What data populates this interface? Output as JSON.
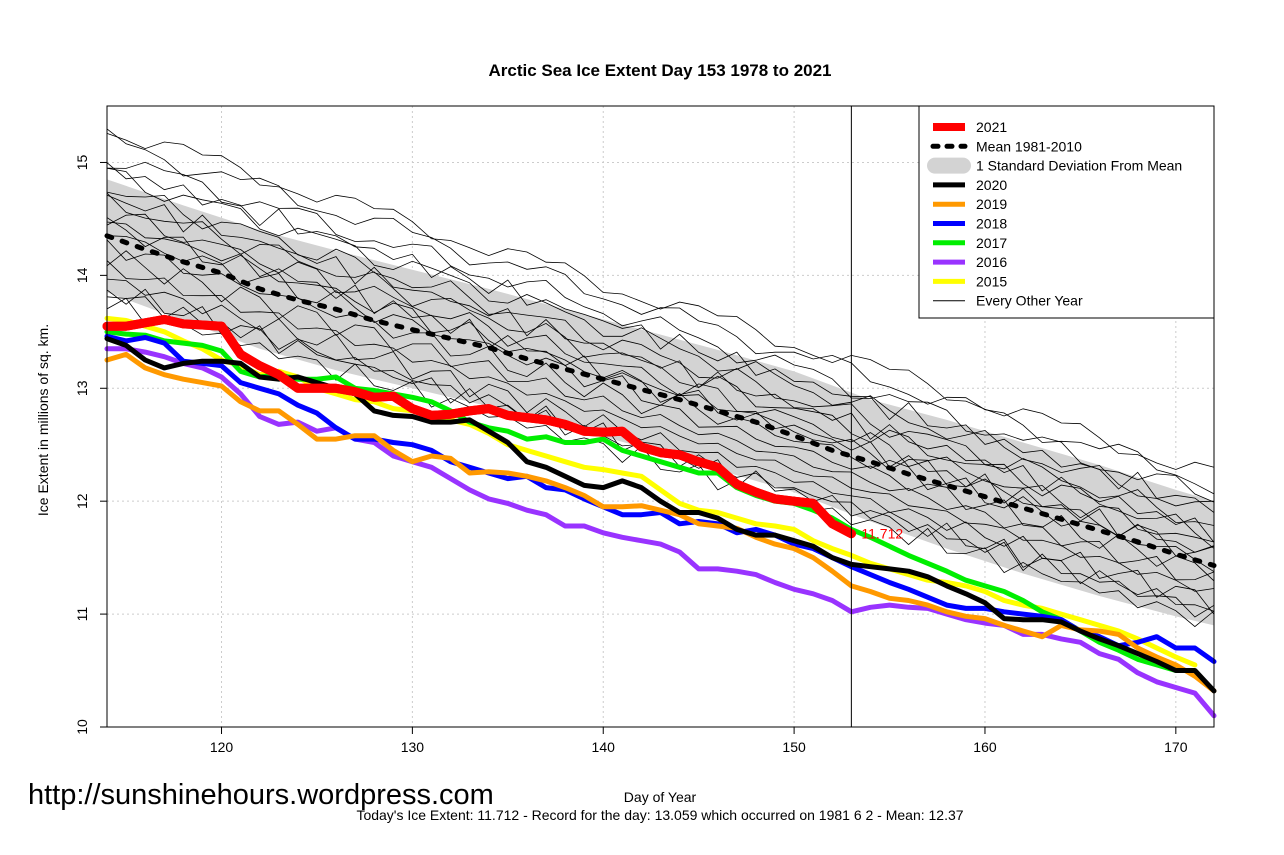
{
  "chart_data": {
    "type": "line",
    "title": "Arctic Sea Ice Extent Day 153 1978 to 2021",
    "xlabel": "Day of Year",
    "ylabel": "Ice Extent in millions of sq. km.",
    "xlim": [
      114,
      172
    ],
    "ylim": [
      10,
      15.5
    ],
    "x_ticks": [
      120,
      130,
      140,
      150,
      160,
      170
    ],
    "y_ticks": [
      10,
      11,
      12,
      13,
      14,
      15
    ],
    "grid": true,
    "legend_position": "top-right",
    "current_day": 153,
    "current_value_label": "11.712",
    "mean": {
      "name": "Mean 1981-2010",
      "x": [
        114,
        116,
        118,
        120,
        122,
        124,
        126,
        128,
        130,
        132,
        134,
        136,
        138,
        140,
        142,
        144,
        146,
        148,
        150,
        152,
        154,
        156,
        158,
        160,
        162,
        164,
        166,
        168,
        170,
        172
      ],
      "y": [
        14.35,
        14.23,
        14.12,
        14.02,
        13.88,
        13.78,
        13.7,
        13.6,
        13.52,
        13.44,
        13.36,
        13.26,
        13.17,
        13.08,
        12.99,
        12.9,
        12.8,
        12.7,
        12.58,
        12.45,
        12.35,
        12.24,
        12.14,
        12.04,
        11.94,
        11.84,
        11.74,
        11.64,
        11.53,
        11.43
      ]
    },
    "std_band": {
      "name": "1 Standard Deviation From Mean",
      "x": [
        114,
        118,
        122,
        126,
        130,
        134,
        138,
        142,
        146,
        150,
        154,
        158,
        162,
        166,
        170,
        172
      ],
      "upper": [
        14.85,
        14.62,
        14.4,
        14.22,
        14.05,
        13.88,
        13.7,
        13.52,
        13.34,
        13.15,
        12.9,
        12.72,
        12.52,
        12.32,
        12.1,
        12.0
      ],
      "lower": [
        13.85,
        13.6,
        13.35,
        13.16,
        13.0,
        12.84,
        12.66,
        12.48,
        12.28,
        12.08,
        11.82,
        11.58,
        11.36,
        11.16,
        10.98,
        10.9
      ]
    },
    "series": [
      {
        "name": "2021",
        "color": "#ff0000",
        "width": 9,
        "x": [
          114,
          115,
          116,
          117,
          118,
          119,
          120,
          121,
          122,
          123,
          124,
          125,
          126,
          127,
          128,
          129,
          130,
          131,
          132,
          133,
          134,
          135,
          136,
          137,
          138,
          139,
          140,
          141,
          142,
          143,
          144,
          145,
          146,
          147,
          148,
          149,
          150,
          151,
          152,
          153
        ],
        "y": [
          13.55,
          13.55,
          13.58,
          13.61,
          13.57,
          13.56,
          13.55,
          13.3,
          13.2,
          13.12,
          13.0,
          13.0,
          13.0,
          12.97,
          12.92,
          12.93,
          12.82,
          12.76,
          12.77,
          12.8,
          12.82,
          12.76,
          12.74,
          12.72,
          12.68,
          12.62,
          12.61,
          12.62,
          12.48,
          12.43,
          12.41,
          12.35,
          12.3,
          12.15,
          12.08,
          12.02,
          12.0,
          11.98,
          11.8,
          11.712
        ]
      },
      {
        "name": "2020",
        "color": "#000000",
        "width": 5,
        "x": [
          114,
          115,
          116,
          117,
          118,
          119,
          120,
          121,
          122,
          123,
          124,
          125,
          126,
          127,
          128,
          129,
          130,
          131,
          132,
          133,
          134,
          135,
          136,
          137,
          138,
          139,
          140,
          141,
          142,
          143,
          144,
          145,
          146,
          147,
          148,
          149,
          150,
          151,
          152,
          153,
          154,
          155,
          156,
          157,
          158,
          159,
          160,
          161,
          162,
          163,
          164,
          165,
          166,
          167,
          168,
          169,
          170,
          171,
          172
        ],
        "y": [
          13.44,
          13.38,
          13.25,
          13.18,
          13.22,
          13.24,
          13.24,
          13.22,
          13.1,
          13.08,
          13.1,
          13.05,
          13.0,
          12.95,
          12.8,
          12.76,
          12.75,
          12.7,
          12.7,
          12.72,
          12.62,
          12.52,
          12.35,
          12.3,
          12.22,
          12.14,
          12.12,
          12.18,
          12.12,
          12.0,
          11.9,
          11.9,
          11.85,
          11.75,
          11.7,
          11.7,
          11.65,
          11.6,
          11.5,
          11.44,
          11.42,
          11.4,
          11.38,
          11.33,
          11.25,
          11.18,
          11.1,
          10.96,
          10.95,
          10.95,
          10.93,
          10.85,
          10.78,
          10.72,
          10.65,
          10.58,
          10.5,
          10.5,
          10.32
        ]
      },
      {
        "name": "2019",
        "color": "#ff9900",
        "width": 5,
        "x": [
          114,
          115,
          116,
          117,
          118,
          119,
          120,
          121,
          122,
          123,
          124,
          125,
          126,
          127,
          128,
          129,
          130,
          131,
          132,
          133,
          134,
          135,
          136,
          137,
          138,
          139,
          140,
          141,
          142,
          143,
          144,
          145,
          146,
          147,
          148,
          149,
          150,
          151,
          152,
          153,
          154,
          155,
          156,
          157,
          158,
          159,
          160,
          161,
          162,
          163,
          164,
          165,
          166,
          167,
          168,
          169,
          170,
          171,
          172
        ],
        "y": [
          13.25,
          13.3,
          13.18,
          13.12,
          13.08,
          13.05,
          13.02,
          12.88,
          12.8,
          12.8,
          12.68,
          12.55,
          12.55,
          12.58,
          12.58,
          12.45,
          12.35,
          12.4,
          12.38,
          12.25,
          12.26,
          12.25,
          12.22,
          12.18,
          12.12,
          12.05,
          11.95,
          11.95,
          11.96,
          11.92,
          11.88,
          11.8,
          11.78,
          11.76,
          11.68,
          11.62,
          11.58,
          11.5,
          11.38,
          11.25,
          11.2,
          11.14,
          11.12,
          11.08,
          11.02,
          10.98,
          10.96,
          10.9,
          10.85,
          10.8,
          10.9,
          10.86,
          10.85,
          10.82,
          10.7,
          10.62,
          10.55,
          10.45,
          10.32
        ]
      },
      {
        "name": "2018",
        "color": "#0000ff",
        "width": 5,
        "x": [
          114,
          115,
          116,
          117,
          118,
          119,
          120,
          121,
          122,
          123,
          124,
          125,
          126,
          127,
          128,
          129,
          130,
          131,
          132,
          133,
          134,
          135,
          136,
          137,
          138,
          139,
          140,
          141,
          142,
          143,
          144,
          145,
          146,
          147,
          148,
          149,
          150,
          151,
          152,
          153,
          154,
          155,
          156,
          157,
          158,
          159,
          160,
          161,
          162,
          163,
          164,
          165,
          166,
          167,
          168,
          169,
          170,
          171,
          172
        ],
        "y": [
          13.46,
          13.42,
          13.45,
          13.4,
          13.24,
          13.22,
          13.2,
          13.05,
          13.0,
          12.95,
          12.85,
          12.78,
          12.65,
          12.55,
          12.55,
          12.52,
          12.5,
          12.45,
          12.35,
          12.3,
          12.25,
          12.2,
          12.22,
          12.12,
          12.1,
          12.02,
          11.95,
          11.88,
          11.88,
          11.9,
          11.8,
          11.82,
          11.8,
          11.72,
          11.75,
          11.7,
          11.62,
          11.58,
          11.5,
          11.42,
          11.35,
          11.28,
          11.22,
          11.15,
          11.08,
          11.05,
          11.05,
          11.02,
          11.0,
          10.98,
          10.95,
          10.85,
          10.8,
          10.72,
          10.75,
          10.8,
          10.7,
          10.7,
          10.58
        ]
      },
      {
        "name": "2017",
        "color": "#00ee00",
        "width": 5,
        "x": [
          114,
          115,
          116,
          117,
          118,
          119,
          120,
          121,
          122,
          123,
          124,
          125,
          126,
          127,
          128,
          129,
          130,
          131,
          132,
          133,
          134,
          135,
          136,
          137,
          138,
          139,
          140,
          141,
          142,
          143,
          144,
          145,
          146,
          147,
          148,
          149,
          150,
          151,
          152,
          153,
          154,
          155,
          156,
          157,
          158,
          159,
          160,
          161,
          162,
          163,
          164,
          165,
          166,
          167,
          168,
          169,
          170
        ],
        "y": [
          13.5,
          13.48,
          13.47,
          13.42,
          13.4,
          13.38,
          13.33,
          13.15,
          13.1,
          13.12,
          13.08,
          13.08,
          13.1,
          13.0,
          12.98,
          12.95,
          12.92,
          12.88,
          12.8,
          12.7,
          12.65,
          12.62,
          12.55,
          12.57,
          12.52,
          12.52,
          12.55,
          12.45,
          12.4,
          12.35,
          12.3,
          12.25,
          12.25,
          12.12,
          12.05,
          12.0,
          11.98,
          11.92,
          11.85,
          11.75,
          11.68,
          11.6,
          11.52,
          11.45,
          11.38,
          11.3,
          11.25,
          11.2,
          11.12,
          11.02,
          10.95,
          10.85,
          10.75,
          10.68,
          10.6,
          10.55,
          10.5
        ]
      },
      {
        "name": "2016",
        "color": "#9933ff",
        "width": 5,
        "x": [
          114,
          115,
          116,
          117,
          118,
          119,
          120,
          121,
          122,
          123,
          124,
          125,
          126,
          127,
          128,
          129,
          130,
          131,
          132,
          133,
          134,
          135,
          136,
          137,
          138,
          139,
          140,
          141,
          142,
          143,
          144,
          145,
          146,
          147,
          148,
          149,
          150,
          151,
          152,
          153,
          154,
          155,
          156,
          157,
          158,
          159,
          160,
          161,
          162,
          163,
          164,
          165,
          166,
          167,
          168,
          169,
          170,
          171,
          172
        ],
        "y": [
          13.35,
          13.35,
          13.32,
          13.28,
          13.22,
          13.18,
          13.1,
          12.95,
          12.75,
          12.68,
          12.7,
          12.62,
          12.65,
          12.55,
          12.52,
          12.4,
          12.35,
          12.3,
          12.2,
          12.1,
          12.02,
          11.98,
          11.92,
          11.88,
          11.78,
          11.78,
          11.72,
          11.68,
          11.65,
          11.62,
          11.55,
          11.4,
          11.4,
          11.38,
          11.35,
          11.28,
          11.22,
          11.18,
          11.12,
          11.02,
          11.06,
          11.08,
          11.06,
          11.05,
          11.0,
          10.95,
          10.92,
          10.9,
          10.82,
          10.82,
          10.78,
          10.75,
          10.65,
          10.6,
          10.48,
          10.4,
          10.35,
          10.3,
          10.1
        ]
      },
      {
        "name": "2015",
        "color": "#ffff00",
        "width": 5,
        "x": [
          114,
          115,
          116,
          117,
          118,
          119,
          120,
          121,
          122,
          123,
          124,
          125,
          126,
          127,
          128,
          129,
          130,
          131,
          132,
          133,
          134,
          135,
          136,
          137,
          138,
          139,
          140,
          141,
          142,
          143,
          144,
          145,
          146,
          147,
          148,
          149,
          150,
          151,
          152,
          153,
          154,
          155,
          156,
          157,
          158,
          159,
          160,
          161,
          162,
          163,
          164,
          165,
          166,
          167,
          168,
          169,
          170,
          171
        ],
        "y": [
          13.62,
          13.6,
          13.55,
          13.5,
          13.42,
          13.35,
          13.25,
          13.2,
          13.12,
          13.15,
          13.1,
          13.0,
          12.95,
          12.9,
          12.88,
          12.82,
          12.8,
          12.75,
          12.72,
          12.68,
          12.6,
          12.5,
          12.45,
          12.4,
          12.35,
          12.3,
          12.28,
          12.25,
          12.22,
          12.1,
          11.98,
          11.92,
          11.9,
          11.85,
          11.8,
          11.78,
          11.75,
          11.65,
          11.58,
          11.52,
          11.45,
          11.4,
          11.35,
          11.3,
          11.28,
          11.25,
          11.2,
          11.12,
          11.08,
          11.05,
          11.0,
          10.95,
          10.9,
          10.85,
          10.78,
          10.7,
          10.62,
          10.55
        ]
      }
    ],
    "legend": [
      {
        "label": "2021",
        "color": "#ff0000",
        "style": "thick"
      },
      {
        "label": "Mean 1981-2010",
        "color": "#000000",
        "style": "dotted"
      },
      {
        "label": "1 Standard Deviation From Mean",
        "color": "#d3d3d3",
        "style": "band"
      },
      {
        "label": "2020",
        "color": "#000000",
        "style": "solid"
      },
      {
        "label": "2019",
        "color": "#ff9900",
        "style": "solid"
      },
      {
        "label": "2018",
        "color": "#0000ff",
        "style": "solid"
      },
      {
        "label": "2017",
        "color": "#00ee00",
        "style": "solid"
      },
      {
        "label": "2016",
        "color": "#9933ff",
        "style": "solid"
      },
      {
        "label": "2015",
        "color": "#ffff00",
        "style": "solid"
      },
      {
        "label": "Every Other Year",
        "color": "#000000",
        "style": "thin"
      }
    ]
  },
  "watermark": "http://sunshinehours.wordpress.com",
  "footnote": "Today's Ice Extent: 11.712  - Record for the day: 13.059 which occurred on 1981 6 2  - Mean: 12.37"
}
